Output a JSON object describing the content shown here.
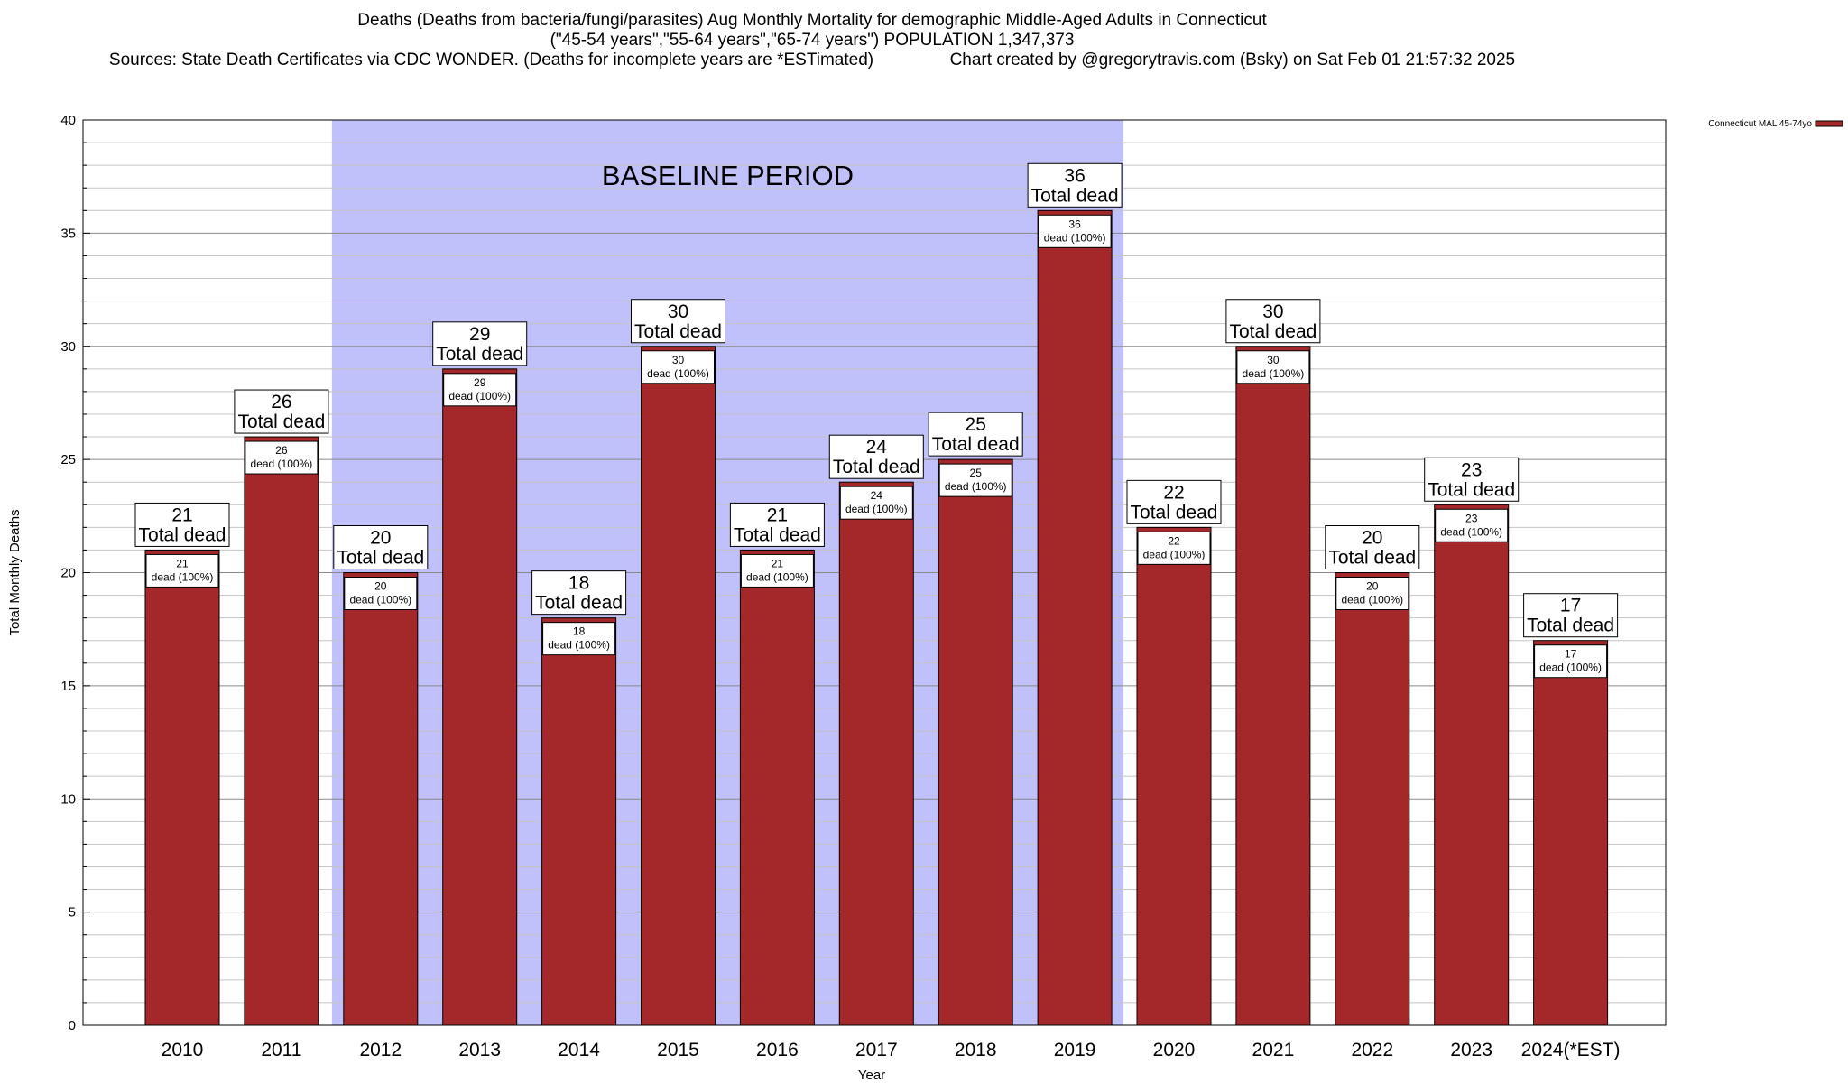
{
  "header": {
    "line1": "Deaths (Deaths from bacteria/fungi/parasites) Aug Monthly Mortality for demographic Middle-Aged Adults in Connecticut",
    "line2": "(\"45-54 years\",\"55-64 years\",\"65-74 years\") POPULATION 1,347,373",
    "line3_left": "Sources: State Death Certificates via CDC WONDER. (Deaths for incomplete years are *ESTimated)",
    "line3_right": "Chart created by @gregorytravis.com (Bsky) on Sat Feb 01 21:57:32 2025"
  },
  "chart_data": {
    "type": "bar",
    "xlabel": "Year",
    "ylabel": "Total Monthly Deaths",
    "ylim": [
      0,
      40
    ],
    "yticks": [
      0,
      5,
      10,
      15,
      20,
      25,
      30,
      35,
      40
    ],
    "grid": true,
    "legend_position": "top-right",
    "categories": [
      "2010",
      "2011",
      "2012",
      "2013",
      "2014",
      "2015",
      "2016",
      "2017",
      "2018",
      "2019",
      "2020",
      "2021",
      "2022",
      "2023",
      "2024(*EST)"
    ],
    "series": [
      {
        "name": "Connecticut MAL 45-74yo",
        "color": "#a4282a",
        "values": [
          21,
          26,
          20,
          29,
          18,
          30,
          21,
          24,
          25,
          36,
          22,
          30,
          20,
          23,
          17
        ]
      }
    ],
    "total_label_suffix": "Total dead",
    "inner_label_suffix": "dead (100%)",
    "baseline": {
      "label": "BASELINE PERIOD",
      "start": "2012",
      "end": "2019",
      "color": "#c0c0fb"
    }
  }
}
